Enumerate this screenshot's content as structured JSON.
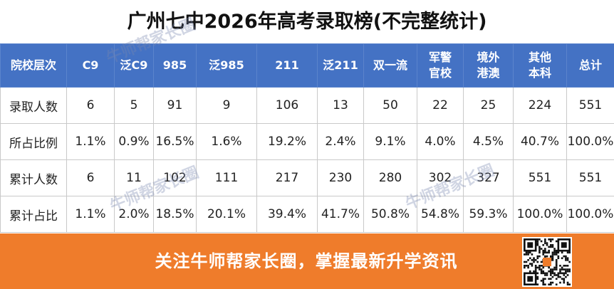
{
  "header": {
    "title": "广州七中2026年高考录取榜(不完整统计)"
  },
  "table": {
    "columns": [
      "院校层次",
      "C9",
      "泛C9",
      "985",
      "泛985",
      "211",
      "泛211",
      "双一流",
      "军警官校",
      "境外港澳",
      "其他本科",
      "总计"
    ],
    "rows": [
      [
        "录取人数",
        "6",
        "5",
        "91",
        "9",
        "106",
        "13",
        "50",
        "22",
        "25",
        "224",
        "551"
      ],
      [
        "所占比例",
        "1.1%",
        "0.9%",
        "16.5%",
        "1.6%",
        "19.2%",
        "2.4%",
        "9.1%",
        "4.0%",
        "4.5%",
        "40.7%",
        "100.0%"
      ],
      [
        "累计人数",
        "6",
        "11",
        "102",
        "111",
        "217",
        "230",
        "280",
        "302",
        "327",
        "551",
        "551"
      ],
      [
        "累计占比",
        "1.1%",
        "2.0%",
        "18.5%",
        "20.1%",
        "39.4%",
        "41.7%",
        "50.8%",
        "54.8%",
        "59.3%",
        "100.0%",
        "100.0%"
      ]
    ]
  },
  "footer": {
    "text": "关注牛师帮家长圈，掌握最新升学资讯"
  },
  "watermarks": [
    "牛师帮家长圈",
    "牛师帮家长圈",
    "牛师帮家长圈"
  ]
}
